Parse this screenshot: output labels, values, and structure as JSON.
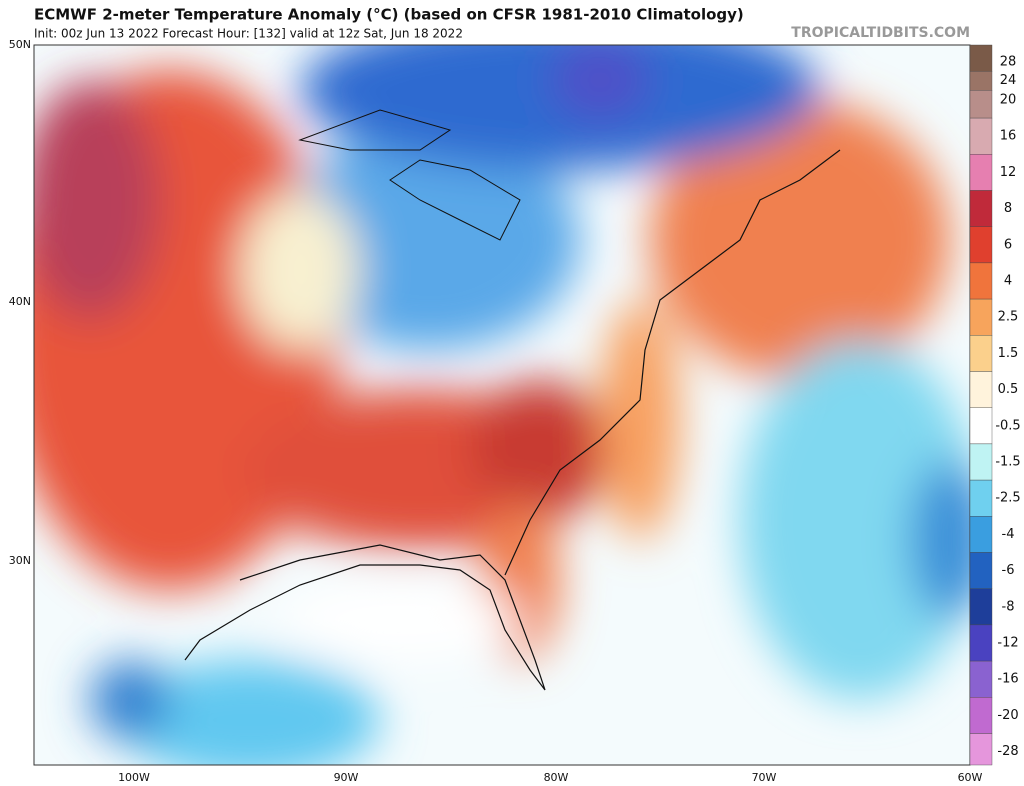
{
  "header": {
    "title": "ECMWF 2-meter Temperature Anomaly (°C) (based on CFSR 1981-2010 Climatology)",
    "subtitle": "Init: 00z Jun 13 2022   Forecast Hour: [132]   valid at 12z Sat, Jun 18 2022",
    "brand": "TROPICALTIDBITS.COM"
  },
  "map": {
    "lat_labels": [
      "50N",
      "40N",
      "30N"
    ],
    "lon_labels": [
      "100W",
      "90W",
      "80W",
      "70W",
      "60W"
    ]
  },
  "colorbar": {
    "labels": [
      "28",
      "24",
      "20",
      "16",
      "12",
      "8",
      "6",
      "4",
      "2.5",
      "1.5",
      "0.5",
      "-0.5",
      "-1.5",
      "-2.5",
      "-4",
      "-6",
      "-8",
      "-12",
      "-16",
      "-20",
      "-28"
    ],
    "colors": [
      "#7a5a48",
      "#9a7466",
      "#b88e8a",
      "#d8aab0",
      "#e67fb0",
      "#c02a3a",
      "#e0402e",
      "#f0743c",
      "#f7a45c",
      "#fbd08c",
      "#fff3dc",
      "#ffffff",
      "#bff3f3",
      "#6fd0ef",
      "#3a9ee0",
      "#2262c0",
      "#1e3e9a",
      "#4a42c0",
      "#8a62d0",
      "#c06ad0",
      "#e596dc",
      "#f1c4e4"
    ]
  }
}
